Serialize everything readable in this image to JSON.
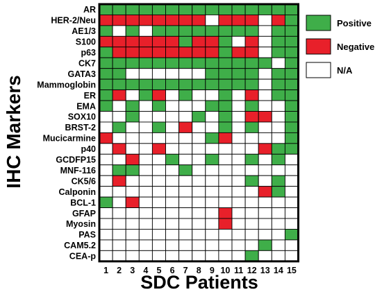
{
  "chart_data": {
    "type": "heatmap",
    "title": "",
    "xlabel": "SDC Patients",
    "ylabel": "IHC Markers",
    "x_categories": [
      "1",
      "2",
      "3",
      "4",
      "5",
      "6",
      "7",
      "8",
      "9",
      "10",
      "11",
      "12",
      "13",
      "14",
      "15"
    ],
    "y_categories": [
      "AR",
      "HER-2/Neu",
      "AE1/3",
      "S100",
      "p63",
      "CK7",
      "GATA3",
      "Mammoglobin",
      "ER",
      "EMA",
      "SOX10",
      "BRST-2",
      "Mucicarmine",
      "p40",
      "GCDFP15",
      "MNF-116",
      "CK5/6",
      "Calponin",
      "BCL-1",
      "GFAP",
      "Myosin",
      "PAS",
      "CAM5.2",
      "CEA-p"
    ],
    "legend": [
      {
        "code": "P",
        "label": "Positive",
        "color": "#3fae49"
      },
      {
        "code": "N",
        "label": "Negative",
        "color": "#e8202a"
      },
      {
        "code": "A",
        "label": "N/A",
        "color": "#ffffff"
      }
    ],
    "legend_position": "right",
    "grid": true,
    "values": [
      "PPPPPPPPPPPPPPP",
      "NNNNNNNNANNNANP",
      "PAPAPPPPPPPPAPP",
      "NNNNNNPNNPANAPP",
      "PNNNNNNNNPNNAPP",
      "PPPPPPPPPPPPPAP",
      "PPAAAAAAPPPPAPP",
      "PPPPPPPPPPPPAPP",
      "PNAPNAPAAPANAPP",
      "PAPAPAAAPPAPAAP",
      "AAPAAAAPAPANNAP",
      "APAAPANAAPAPAAP",
      "NAAAAAAAPNAAAAP",
      "ANAANAAAAAAANPP",
      "AANAAPAAPAAPAPA",
      "APPAAAPAAAAAAAA",
      "ANAAAAAAAAAPAPA",
      "AAAAAAAAAAAANPA",
      "PANAAAAAAAAAAAA",
      "AAAAAAAAANAAAAA",
      "AAAAAAAAANAAAAA",
      "AAAAAAAAAAAAAAP",
      "AAAAAAAAAAAAPAA",
      "AAAAAAAAAAAPAAA"
    ]
  }
}
